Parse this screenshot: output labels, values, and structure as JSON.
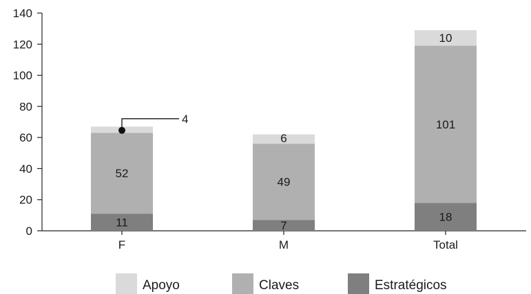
{
  "chart_data": {
    "type": "bar",
    "stacked": true,
    "categories": [
      "F",
      "M",
      "Total"
    ],
    "series": [
      {
        "name": "Estratégicos",
        "values": [
          11,
          7,
          18
        ],
        "color": "#7f7f7f"
      },
      {
        "name": "Claves",
        "values": [
          52,
          49,
          101
        ],
        "color": "#b0b0b0"
      },
      {
        "name": "Apoyo",
        "values": [
          4,
          6,
          10
        ],
        "color": "#dadada"
      }
    ],
    "ylim": [
      0,
      140
    ],
    "yticks": [
      0,
      20,
      40,
      60,
      80,
      100,
      120,
      140
    ],
    "grid": false,
    "legend_position": "bottom",
    "legend_order": [
      "Apoyo",
      "Claves",
      "Estratégicos"
    ],
    "callout": {
      "category": "F",
      "series": "Apoyo",
      "label": "4"
    }
  }
}
